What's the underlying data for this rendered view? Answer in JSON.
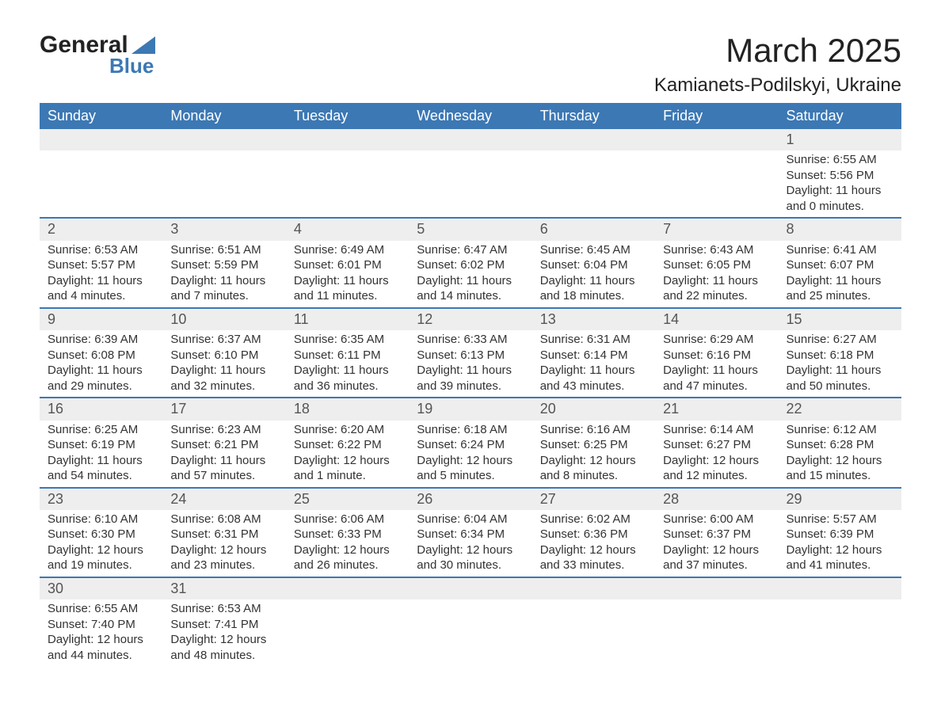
{
  "logo": {
    "text1": "General",
    "text2": "Blue",
    "accent_color": "#3c78b4"
  },
  "title": "March 2025",
  "subtitle": "Kamianets-Podilskyi, Ukraine",
  "header_bg": "#3c78b4",
  "header_fg": "#ffffff",
  "daynum_bg": "#eeeeee",
  "divider_color": "#3c78b4",
  "weekdays": [
    "Sunday",
    "Monday",
    "Tuesday",
    "Wednesday",
    "Thursday",
    "Friday",
    "Saturday"
  ],
  "weeks": [
    [
      null,
      null,
      null,
      null,
      null,
      null,
      {
        "n": "1",
        "sr": "6:55 AM",
        "ss": "5:56 PM",
        "dl": "11 hours and 0 minutes."
      }
    ],
    [
      {
        "n": "2",
        "sr": "6:53 AM",
        "ss": "5:57 PM",
        "dl": "11 hours and 4 minutes."
      },
      {
        "n": "3",
        "sr": "6:51 AM",
        "ss": "5:59 PM",
        "dl": "11 hours and 7 minutes."
      },
      {
        "n": "4",
        "sr": "6:49 AM",
        "ss": "6:01 PM",
        "dl": "11 hours and 11 minutes."
      },
      {
        "n": "5",
        "sr": "6:47 AM",
        "ss": "6:02 PM",
        "dl": "11 hours and 14 minutes."
      },
      {
        "n": "6",
        "sr": "6:45 AM",
        "ss": "6:04 PM",
        "dl": "11 hours and 18 minutes."
      },
      {
        "n": "7",
        "sr": "6:43 AM",
        "ss": "6:05 PM",
        "dl": "11 hours and 22 minutes."
      },
      {
        "n": "8",
        "sr": "6:41 AM",
        "ss": "6:07 PM",
        "dl": "11 hours and 25 minutes."
      }
    ],
    [
      {
        "n": "9",
        "sr": "6:39 AM",
        "ss": "6:08 PM",
        "dl": "11 hours and 29 minutes."
      },
      {
        "n": "10",
        "sr": "6:37 AM",
        "ss": "6:10 PM",
        "dl": "11 hours and 32 minutes."
      },
      {
        "n": "11",
        "sr": "6:35 AM",
        "ss": "6:11 PM",
        "dl": "11 hours and 36 minutes."
      },
      {
        "n": "12",
        "sr": "6:33 AM",
        "ss": "6:13 PM",
        "dl": "11 hours and 39 minutes."
      },
      {
        "n": "13",
        "sr": "6:31 AM",
        "ss": "6:14 PM",
        "dl": "11 hours and 43 minutes."
      },
      {
        "n": "14",
        "sr": "6:29 AM",
        "ss": "6:16 PM",
        "dl": "11 hours and 47 minutes."
      },
      {
        "n": "15",
        "sr": "6:27 AM",
        "ss": "6:18 PM",
        "dl": "11 hours and 50 minutes."
      }
    ],
    [
      {
        "n": "16",
        "sr": "6:25 AM",
        "ss": "6:19 PM",
        "dl": "11 hours and 54 minutes."
      },
      {
        "n": "17",
        "sr": "6:23 AM",
        "ss": "6:21 PM",
        "dl": "11 hours and 57 minutes."
      },
      {
        "n": "18",
        "sr": "6:20 AM",
        "ss": "6:22 PM",
        "dl": "12 hours and 1 minute."
      },
      {
        "n": "19",
        "sr": "6:18 AM",
        "ss": "6:24 PM",
        "dl": "12 hours and 5 minutes."
      },
      {
        "n": "20",
        "sr": "6:16 AM",
        "ss": "6:25 PM",
        "dl": "12 hours and 8 minutes."
      },
      {
        "n": "21",
        "sr": "6:14 AM",
        "ss": "6:27 PM",
        "dl": "12 hours and 12 minutes."
      },
      {
        "n": "22",
        "sr": "6:12 AM",
        "ss": "6:28 PM",
        "dl": "12 hours and 15 minutes."
      }
    ],
    [
      {
        "n": "23",
        "sr": "6:10 AM",
        "ss": "6:30 PM",
        "dl": "12 hours and 19 minutes."
      },
      {
        "n": "24",
        "sr": "6:08 AM",
        "ss": "6:31 PM",
        "dl": "12 hours and 23 minutes."
      },
      {
        "n": "25",
        "sr": "6:06 AM",
        "ss": "6:33 PM",
        "dl": "12 hours and 26 minutes."
      },
      {
        "n": "26",
        "sr": "6:04 AM",
        "ss": "6:34 PM",
        "dl": "12 hours and 30 minutes."
      },
      {
        "n": "27",
        "sr": "6:02 AM",
        "ss": "6:36 PM",
        "dl": "12 hours and 33 minutes."
      },
      {
        "n": "28",
        "sr": "6:00 AM",
        "ss": "6:37 PM",
        "dl": "12 hours and 37 minutes."
      },
      {
        "n": "29",
        "sr": "5:57 AM",
        "ss": "6:39 PM",
        "dl": "12 hours and 41 minutes."
      }
    ],
    [
      {
        "n": "30",
        "sr": "6:55 AM",
        "ss": "7:40 PM",
        "dl": "12 hours and 44 minutes."
      },
      {
        "n": "31",
        "sr": "6:53 AM",
        "ss": "7:41 PM",
        "dl": "12 hours and 48 minutes."
      },
      null,
      null,
      null,
      null,
      null
    ]
  ],
  "labels": {
    "sunrise": "Sunrise:",
    "sunset": "Sunset:",
    "daylight": "Daylight:"
  }
}
